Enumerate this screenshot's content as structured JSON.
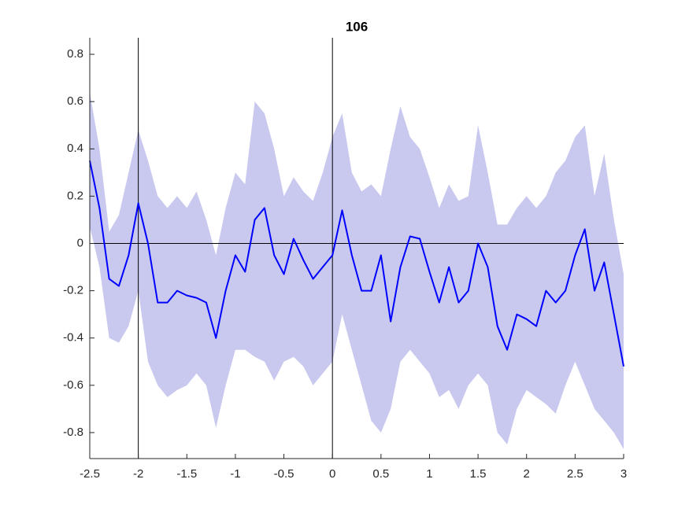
{
  "chart_data": {
    "type": "line",
    "title": "106",
    "x": [
      -2.5,
      -2.4,
      -2.3,
      -2.2,
      -2.1,
      -2.0,
      -1.9,
      -1.8,
      -1.7,
      -1.6,
      -1.5,
      -1.4,
      -1.3,
      -1.2,
      -1.1,
      -1.0,
      -0.9,
      -0.8,
      -0.7,
      -0.6,
      -0.5,
      -0.4,
      -0.3,
      -0.2,
      -0.1,
      0.0,
      0.1,
      0.2,
      0.3,
      0.4,
      0.5,
      0.6,
      0.7,
      0.8,
      0.9,
      1.0,
      1.1,
      1.2,
      1.3,
      1.4,
      1.5,
      1.6,
      1.7,
      1.8,
      1.9,
      2.0,
      2.1,
      2.2,
      2.3,
      2.4,
      2.5,
      2.6,
      2.7,
      2.8,
      2.9,
      3.0
    ],
    "values": [
      0.35,
      0.15,
      -0.15,
      -0.18,
      -0.05,
      0.17,
      0.0,
      -0.25,
      -0.25,
      -0.2,
      -0.22,
      -0.23,
      -0.25,
      -0.4,
      -0.2,
      -0.05,
      -0.12,
      0.1,
      0.15,
      -0.05,
      -0.13,
      0.02,
      -0.07,
      -0.15,
      -0.1,
      -0.05,
      0.14,
      -0.05,
      -0.2,
      -0.2,
      -0.05,
      -0.33,
      -0.1,
      0.03,
      0.02,
      -0.12,
      -0.25,
      -0.1,
      -0.25,
      -0.2,
      0.0,
      -0.1,
      -0.35,
      -0.45,
      -0.3,
      -0.32,
      -0.35,
      -0.2,
      -0.25,
      -0.2,
      -0.05,
      0.06,
      -0.2,
      -0.08,
      -0.3,
      -0.52
    ],
    "upper": [
      0.64,
      0.4,
      0.05,
      0.12,
      0.3,
      0.48,
      0.35,
      0.2,
      0.15,
      0.2,
      0.15,
      0.22,
      0.1,
      -0.05,
      0.15,
      0.3,
      0.25,
      0.6,
      0.55,
      0.4,
      0.2,
      0.28,
      0.22,
      0.18,
      0.3,
      0.45,
      0.55,
      0.3,
      0.22,
      0.25,
      0.2,
      0.4,
      0.58,
      0.45,
      0.4,
      0.28,
      0.15,
      0.25,
      0.18,
      0.2,
      0.5,
      0.3,
      0.08,
      0.08,
      0.15,
      0.2,
      0.15,
      0.2,
      0.3,
      0.35,
      0.45,
      0.5,
      0.2,
      0.38,
      0.1,
      -0.13
    ],
    "lower": [
      0.07,
      -0.1,
      -0.4,
      -0.42,
      -0.35,
      -0.2,
      -0.5,
      -0.6,
      -0.65,
      -0.62,
      -0.6,
      -0.55,
      -0.6,
      -0.78,
      -0.6,
      -0.45,
      -0.45,
      -0.48,
      -0.5,
      -0.58,
      -0.5,
      -0.48,
      -0.52,
      -0.6,
      -0.55,
      -0.5,
      -0.3,
      -0.45,
      -0.6,
      -0.75,
      -0.8,
      -0.7,
      -0.5,
      -0.45,
      -0.5,
      -0.55,
      -0.65,
      -0.62,
      -0.7,
      -0.6,
      -0.55,
      -0.6,
      -0.8,
      -0.85,
      -0.7,
      -0.62,
      -0.65,
      -0.68,
      -0.72,
      -0.6,
      -0.5,
      -0.6,
      -0.7,
      -0.75,
      -0.8,
      -0.87
    ],
    "color": "#0000ff",
    "band_color": "#c9c9f0",
    "reference_x": [
      -2,
      0
    ],
    "reference_y": [
      0
    ],
    "xlim": [
      -2.5,
      3
    ],
    "ylim": [
      -0.91,
      0.87
    ],
    "xticks": [
      -2.5,
      -2,
      -1.5,
      -1,
      -0.5,
      0,
      0.5,
      1,
      1.5,
      2,
      2.5,
      3
    ],
    "yticks": [
      -0.8,
      -0.6,
      -0.4,
      -0.2,
      0,
      0.2,
      0.4,
      0.6,
      0.8
    ]
  }
}
